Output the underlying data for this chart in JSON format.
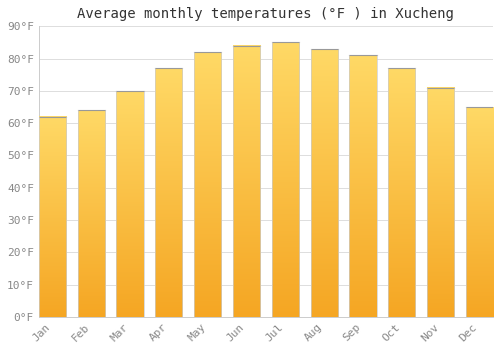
{
  "title": "Average monthly temperatures (°F ) in Xucheng",
  "months": [
    "Jan",
    "Feb",
    "Mar",
    "Apr",
    "May",
    "Jun",
    "Jul",
    "Aug",
    "Sep",
    "Oct",
    "Nov",
    "Dec"
  ],
  "values": [
    62,
    64,
    70,
    77,
    82,
    84,
    85,
    83,
    81,
    77,
    71,
    65
  ],
  "bar_color_bottom": "#F5A623",
  "bar_color_top": "#FFD966",
  "bar_edge_color": "#AAAAAA",
  "ylim": [
    0,
    90
  ],
  "yticks": [
    0,
    10,
    20,
    30,
    40,
    50,
    60,
    70,
    80,
    90
  ],
  "ytick_labels": [
    "0°F",
    "10°F",
    "20°F",
    "30°F",
    "40°F",
    "50°F",
    "60°F",
    "70°F",
    "80°F",
    "90°F"
  ],
  "grid_color": "#dddddd",
  "background_color": "#ffffff",
  "title_fontsize": 10,
  "tick_fontsize": 8,
  "tick_label_color": "#888888",
  "tick_font": "monospace",
  "bar_width": 0.7
}
